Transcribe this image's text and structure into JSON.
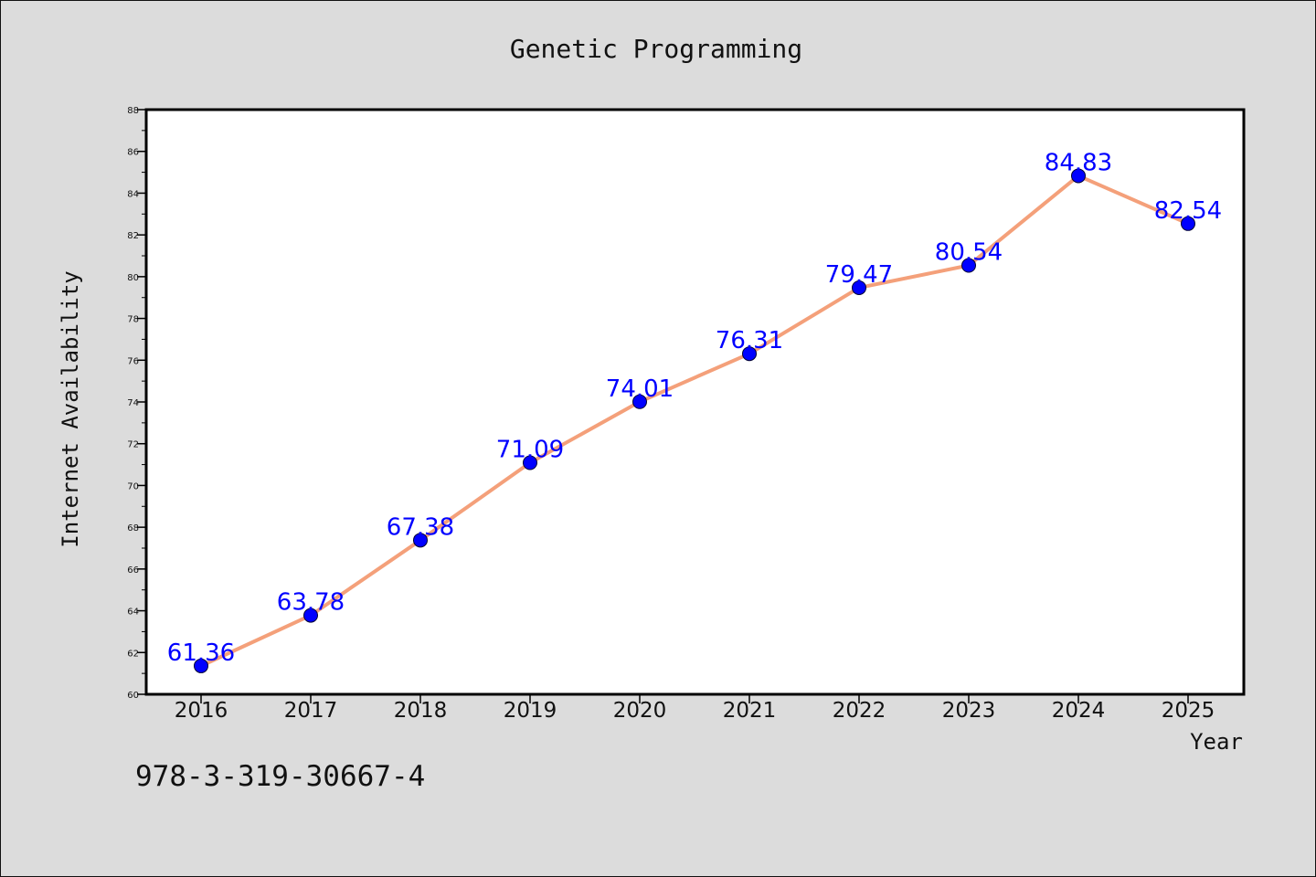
{
  "colors": {
    "background": "#dcdcdc",
    "plot_background": "#ffffff",
    "line": "#f4a07a",
    "marker": "#0000ff",
    "label": "#0000ff"
  },
  "chart_data": {
    "type": "line",
    "title": "Genetic Programming",
    "xlabel": "Year",
    "ylabel": "Internet Availability",
    "categories": [
      "2016",
      "2017",
      "2018",
      "2019",
      "2020",
      "2021",
      "2022",
      "2023",
      "2024",
      "2025"
    ],
    "series": [
      {
        "values": [
          61.36,
          63.78,
          67.38,
          71.09,
          74.01,
          76.31,
          79.47,
          80.54,
          84.83,
          82.54
        ],
        "labels": [
          "61.36",
          "63.78",
          "67.38",
          "71.09",
          "74.01",
          "76.31",
          "79.47",
          "80.54",
          "84.83",
          "82.54"
        ]
      }
    ],
    "ylim": [
      60,
      88
    ],
    "yticks": [
      60,
      62,
      64,
      66,
      68,
      70,
      72,
      74,
      76,
      78,
      80,
      82,
      84,
      86,
      88
    ],
    "ytick_labels": [
      "60",
      "62",
      "64",
      "66",
      "68",
      "70",
      "72",
      "74",
      "76",
      "78",
      "80",
      "82",
      "84",
      "86",
      "88"
    ],
    "grid": false,
    "legend": false
  },
  "annotation": {
    "isbn": "978-3-319-30667-4"
  }
}
